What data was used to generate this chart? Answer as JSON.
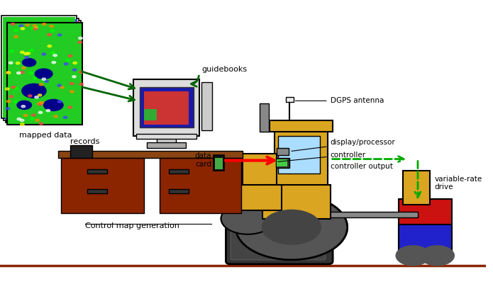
{
  "background_color": "#ffffff",
  "figure_width": 6.95,
  "figure_height": 4.01,
  "dpi": 100,
  "colors": {
    "green_arrow": "#006400",
    "red_arrow": "#FF0000",
    "green_dashed": "#00AA00",
    "desk_brown": "#8B2500",
    "desk_top": "#8B4513",
    "tractor_yellow": "#DAA520",
    "track_dark": "#333333",
    "text_black": "#000000"
  },
  "labels": {
    "mapped_data": "mapped data",
    "records": "records",
    "guidebooks": "guidebooks",
    "control_map": "Control map generation",
    "data_card": "data\ncard",
    "dgps": "DGPS antenna",
    "display": "display/processor",
    "controller": "controller",
    "ctrl_output": "controller output",
    "var_rate": "variable-rate\ndrive"
  }
}
